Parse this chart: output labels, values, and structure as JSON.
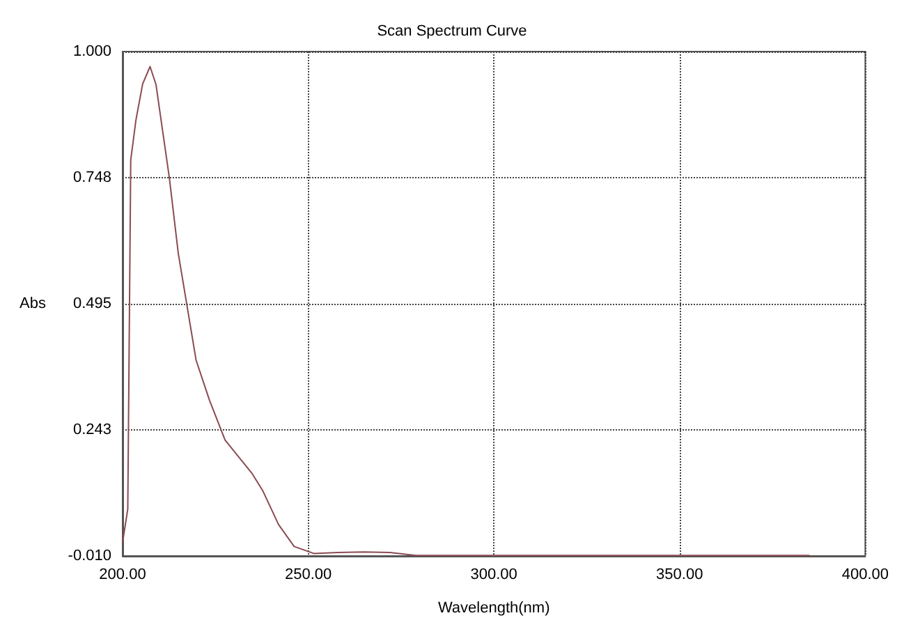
{
  "chart_data": {
    "type": "line",
    "title": "Scan Spectrum Curve",
    "xlabel": "Wavelength(nm)",
    "ylabel": "Abs",
    "xlim": [
      200,
      400
    ],
    "ylim": [
      -0.01,
      1.0
    ],
    "xticks": [
      {
        "value": 200,
        "label": "200.00"
      },
      {
        "value": 250,
        "label": "250.00"
      },
      {
        "value": 300,
        "label": "300.00"
      },
      {
        "value": 350,
        "label": "350.00"
      },
      {
        "value": 400,
        "label": "400.00"
      }
    ],
    "yticks": [
      {
        "value": -0.01,
        "label": "-0.010"
      },
      {
        "value": 0.243,
        "label": "0.243"
      },
      {
        "value": 0.495,
        "label": "0.495"
      },
      {
        "value": 0.748,
        "label": "0.748"
      },
      {
        "value": 1.0,
        "label": "1.000"
      }
    ],
    "grid": true,
    "line_style": "solid",
    "marker": "none",
    "series": [
      {
        "color": "#8b4a52",
        "x": [
          200,
          201.4,
          202.2,
          203.6,
          205.4,
          207.4,
          209,
          212.6,
          215,
          217.4,
          219.8,
          223.4,
          227.6,
          234.8,
          237.8,
          242,
          246.2,
          251.5,
          258,
          265,
          272,
          279,
          300,
          330,
          360,
          385
        ],
        "values": [
          0.017,
          0.084,
          0.783,
          0.863,
          0.935,
          0.97,
          0.934,
          0.747,
          0.596,
          0.489,
          0.382,
          0.302,
          0.222,
          0.156,
          0.12,
          0.053,
          0.009,
          -0.005,
          -0.003,
          -0.002,
          -0.003,
          -0.009,
          -0.009,
          -0.009,
          -0.009,
          -0.009
        ]
      }
    ]
  }
}
